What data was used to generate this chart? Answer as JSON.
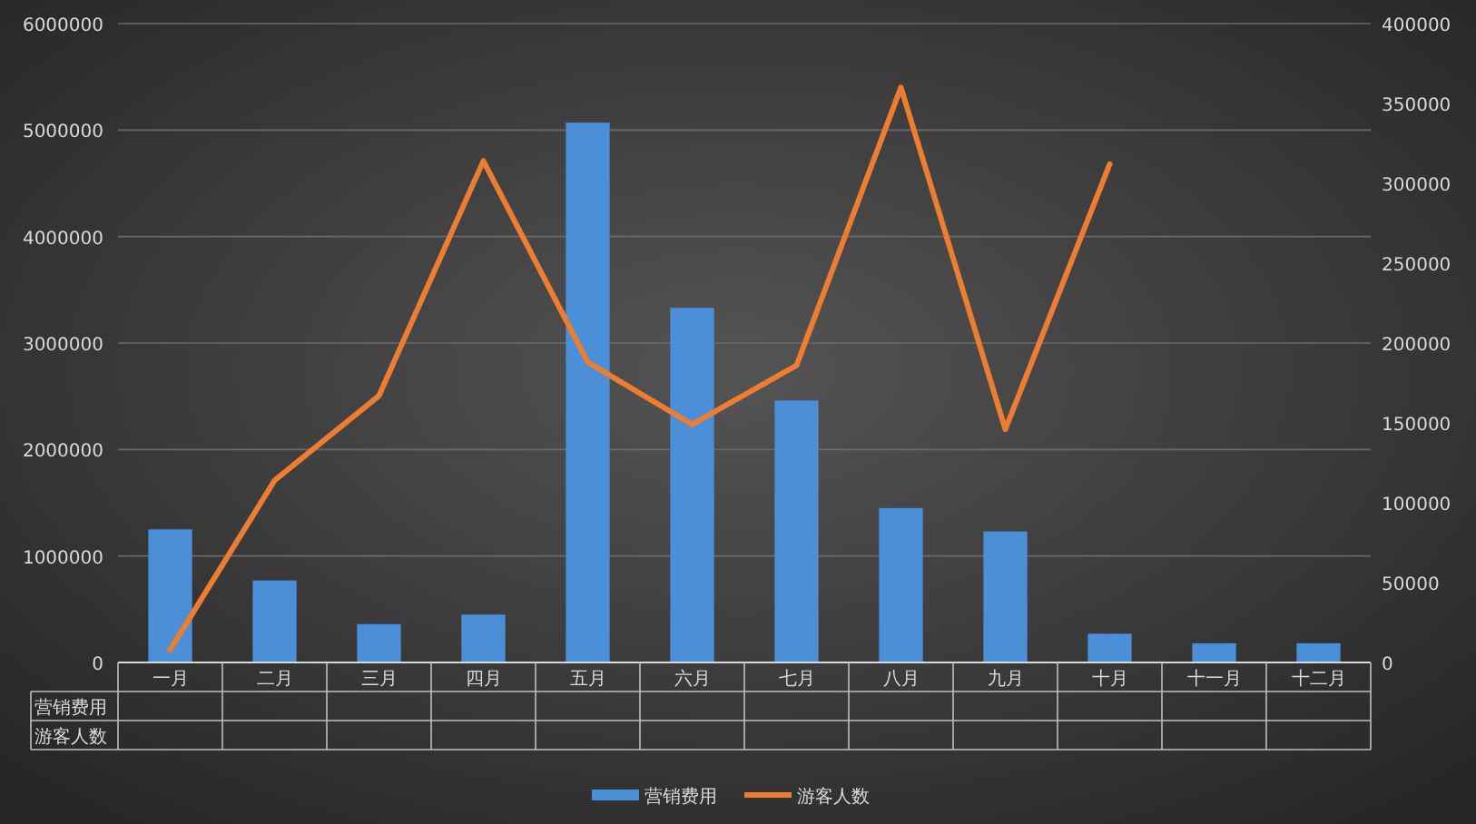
{
  "chart_data": {
    "type": "bar",
    "categories": [
      "一月",
      "二月",
      "三月",
      "四月",
      "五月",
      "六月",
      "七月",
      "八月",
      "九月",
      "十月",
      "十一月",
      "十二月"
    ],
    "series": [
      {
        "name": "营销费用",
        "color": "#4a8fd8",
        "values": [
          1250000,
          770000,
          360000,
          450000,
          5070000,
          3330000,
          2460000,
          1450000,
          1230000,
          270000,
          180000,
          180000
        ]
      },
      {
        "name": "游客人数",
        "type": "line",
        "axis": "y2",
        "color": "#ed7d31",
        "values": [
          8000,
          114000,
          167000,
          314000,
          188000,
          149000,
          186000,
          360000,
          146000,
          312000,
          null,
          null
        ]
      }
    ],
    "ylim": [
      0,
      6000000
    ],
    "yticks": [
      0,
      1000000,
      2000000,
      3000000,
      4000000,
      5000000,
      6000000
    ],
    "y2lim": [
      0,
      400000
    ],
    "y2ticks": [
      0,
      50000,
      100000,
      150000,
      200000,
      250000,
      300000,
      350000,
      400000
    ],
    "grid": "y",
    "legend": "bottom"
  }
}
